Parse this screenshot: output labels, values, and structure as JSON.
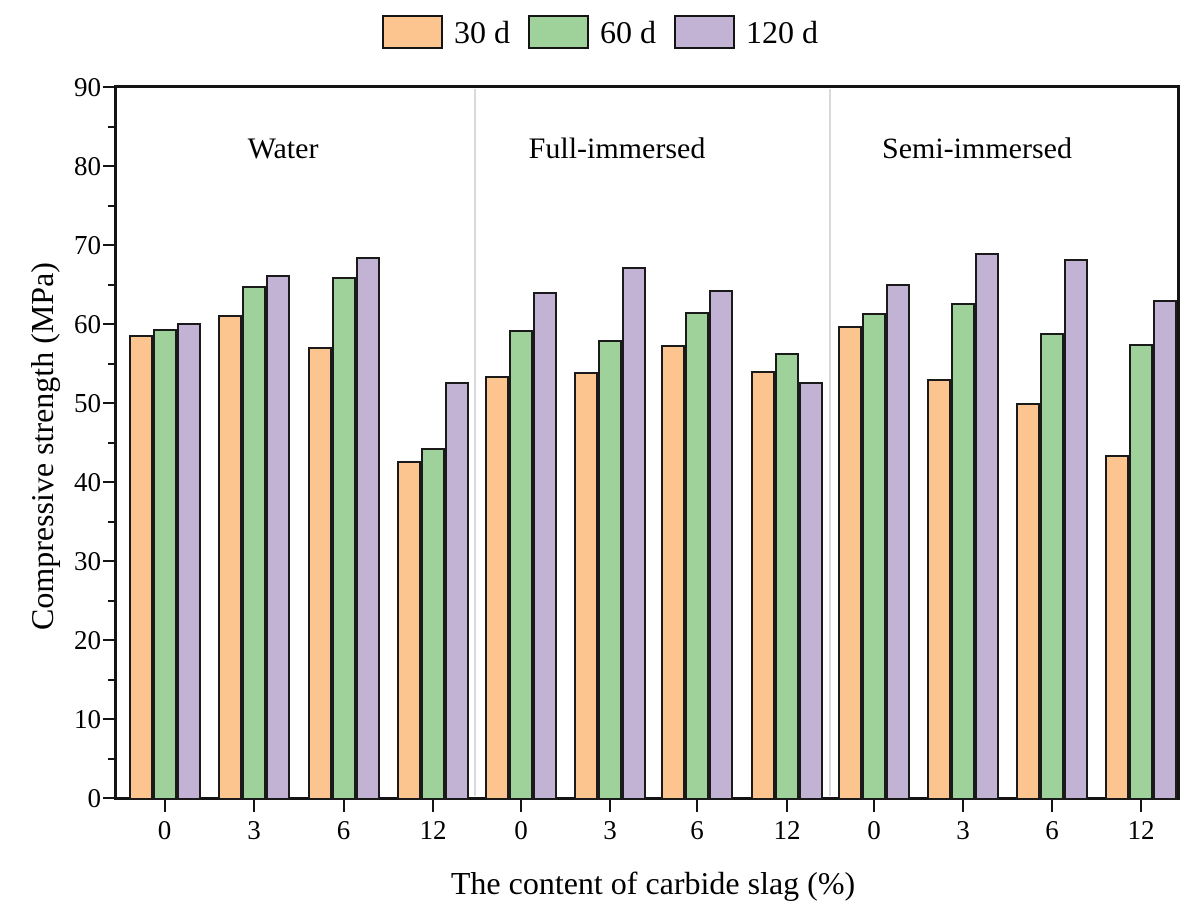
{
  "figure": {
    "legend": [
      {
        "name": "30 d",
        "color": "#FCC590"
      },
      {
        "name": "60 d",
        "color": "#9FD29A"
      },
      {
        "name": "120 d",
        "color": "#C2B3D5"
      }
    ],
    "colors": {
      "bar_edge": "#1A1A1A",
      "axis": "#141414",
      "panel_separator": "#D9D9D9",
      "background": "#FFFFFF"
    }
  },
  "chart_data": {
    "type": "bar",
    "title": "",
    "xlabel": "The content of carbide slag (%)",
    "ylabel": "Compressive strength (MPa)",
    "ylim": [
      0,
      90
    ],
    "y_major_tick_step": 10,
    "y_minor_tick_step": 5,
    "grid": false,
    "legend_position": "top-center",
    "categories": [
      "0",
      "3",
      "6",
      "12"
    ],
    "series_names": [
      "30 d",
      "60 d",
      "120 d"
    ],
    "series_colors": {
      "30 d": "#FCC590",
      "60 d": "#9FD29A",
      "120 d": "#C2B3D5"
    },
    "panels": [
      {
        "label": "Water",
        "series": [
          {
            "name": "30 d",
            "values": [
              58.6,
              61.1,
              57.1,
              42.6
            ]
          },
          {
            "name": "60 d",
            "values": [
              59.4,
              64.8,
              65.9,
              44.3
            ]
          },
          {
            "name": "120 d",
            "values": [
              60.1,
              66.2,
              68.5,
              52.6
            ]
          }
        ]
      },
      {
        "label": "Full-immersed",
        "series": [
          {
            "name": "30 d",
            "values": [
              53.4,
              53.9,
              57.3,
              54.1
            ]
          },
          {
            "name": "60 d",
            "values": [
              59.2,
              58.0,
              61.5,
              56.3
            ]
          },
          {
            "name": "120 d",
            "values": [
              64.1,
              67.2,
              64.3,
              52.7
            ]
          }
        ]
      },
      {
        "label": "Semi-immersed",
        "series": [
          {
            "name": "30 d",
            "values": [
              59.8,
              53.0,
              50.0,
              43.4
            ]
          },
          {
            "name": "60 d",
            "values": [
              61.4,
              62.7,
              58.9,
              57.5
            ]
          },
          {
            "name": "120 d",
            "values": [
              65.0,
              69.0,
              68.2,
              63.1
            ]
          }
        ]
      }
    ]
  }
}
